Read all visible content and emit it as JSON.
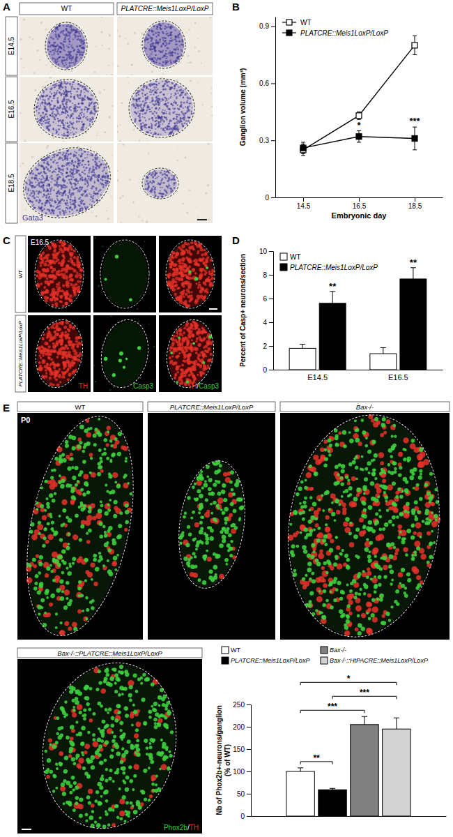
{
  "image_panels": {
    "A": {
      "panel": "A",
      "columns": [
        "WT",
        "PLATCRE::Meis1LoxP/LoxP"
      ],
      "rows": [
        "E14.5",
        "E16.5",
        "E18.5"
      ],
      "stain": "Gata3"
    },
    "C": {
      "panel": "C",
      "stage": "E16.5",
      "rows": [
        "WT",
        "PLATCRE::Meis1LoxP/LoxP"
      ],
      "channels": [
        "TH",
        "Casp3",
        "TH/Casp3"
      ]
    },
    "E": {
      "panel": "E",
      "stage": "P0",
      "images": [
        "WT",
        "PLATCRE::Meis1LoxP/LoxP",
        "Bax-/-",
        "Bax-/-::PLATCRE::Meis1LoxP/LoxP"
      ],
      "stain": "Phox2b/TH"
    }
  },
  "chart_data": [
    {
      "panel": "B",
      "type": "line",
      "x": [
        14.5,
        16.5,
        18.5
      ],
      "xlim": [
        13.5,
        19.5
      ],
      "xticks": [
        14.5,
        16.5,
        18.5
      ],
      "ylim": [
        0,
        0.95
      ],
      "yticks": [
        0,
        0.3,
        0.6,
        0.9
      ],
      "xlabel": "Embryonic day",
      "ylabel": "Ganglion volume (mm³)",
      "legend": "upper left",
      "series": [
        {
          "name": "WT",
          "color": "#000000",
          "marker": "square-open",
          "line_style": "solid",
          "values": [
            0.25,
            0.43,
            0.8
          ],
          "errors": [
            0.03,
            0.02,
            0.05
          ]
        },
        {
          "name": "PLATCRE::Meis1LoxP/LoxP",
          "color": "#000000",
          "marker": "square",
          "line_style": "solid",
          "values": [
            0.26,
            0.32,
            0.31
          ],
          "errors": [
            0.03,
            0.03,
            0.06
          ],
          "significance": [
            null,
            "*",
            "***"
          ]
        }
      ]
    },
    {
      "panel": "D",
      "type": "bar",
      "categories": [
        "E14.5",
        "E16.5"
      ],
      "ylim": [
        0,
        10
      ],
      "yticks": [
        0,
        2,
        4,
        6,
        8,
        10
      ],
      "ylabel": "Percent of Casp+ neurons/section",
      "legend": "upper left",
      "series": [
        {
          "name": "WT",
          "color": "#ffffff",
          "values": [
            1.8,
            1.35
          ],
          "errors": [
            0.35,
            0.5
          ]
        },
        {
          "name": "PLATCRE::Meis1LoxP/LoxP",
          "color": "#000000",
          "values": [
            5.6,
            7.65
          ],
          "errors": [
            1.0,
            0.95
          ],
          "significance": [
            "**",
            "**"
          ]
        }
      ]
    },
    {
      "type": "bar",
      "categories": [
        null
      ],
      "ylim": [
        0,
        250
      ],
      "yticks": [
        0,
        50,
        100,
        150,
        200,
        250
      ],
      "ylabel": [
        "Nb of Phox2b+-neurons/ganglion",
        "(% of WT)"
      ],
      "legend": "top",
      "series": [
        {
          "name": "WT",
          "color": "#ffffff",
          "values": [
            100
          ],
          "errors": [
            8
          ]
        },
        {
          "name": "PLATCRE::Meis1LoxP/LoxP",
          "color": "#000000",
          "values": [
            59
          ],
          "errors": [
            3
          ]
        },
        {
          "name": "Bax-/-",
          "color": "#808080",
          "values": [
            205
          ],
          "errors": [
            18
          ]
        },
        {
          "name": "Bax-/-::HtPACRE::Meis1LoxP/LoxP",
          "color": "#d3d3d3",
          "values": [
            195
          ],
          "errors": [
            25
          ]
        }
      ],
      "comparisons": [
        {
          "between": [
            "WT",
            "PLATCRE::Meis1LoxP/LoxP"
          ],
          "label": "**"
        },
        {
          "between": [
            "WT",
            "Bax-/-"
          ],
          "label": "***"
        },
        {
          "between": [
            "PLATCRE::Meis1LoxP/LoxP",
            "Bax-/-::HtPACRE::Meis1LoxP/LoxP"
          ],
          "label": "***"
        },
        {
          "between": [
            "WT",
            "Bax-/-::HtPACRE::Meis1LoxP/LoxP"
          ],
          "label": "*"
        }
      ]
    }
  ]
}
